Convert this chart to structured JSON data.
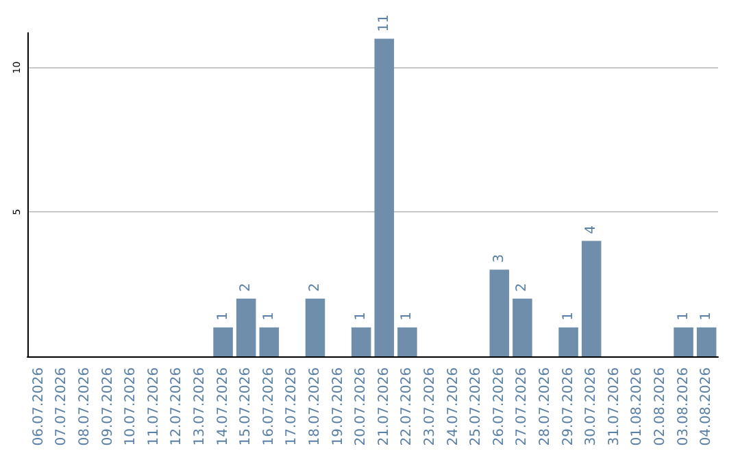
{
  "chart_data": {
    "type": "bar",
    "categories": [
      "06.07.2026",
      "07.07.2026",
      "08.07.2026",
      "09.07.2026",
      "10.07.2026",
      "11.07.2026",
      "12.07.2026",
      "13.07.2026",
      "14.07.2026",
      "15.07.2026",
      "16.07.2026",
      "17.07.2026",
      "18.07.2026",
      "19.07.2026",
      "20.07.2026",
      "21.07.2026",
      "22.07.2026",
      "23.07.2026",
      "24.07.2026",
      "25.07.2026",
      "26.07.2026",
      "27.07.2026",
      "28.07.2026",
      "29.07.2026",
      "30.07.2026",
      "31.07.2026",
      "01.08.2026",
      "02.08.2026",
      "03.08.2026",
      "04.08.2026"
    ],
    "values": [
      0,
      0,
      0,
      0,
      0,
      0,
      0,
      0,
      1,
      2,
      1,
      0,
      2,
      0,
      1,
      11,
      1,
      0,
      0,
      0,
      3,
      2,
      0,
      1,
      4,
      0,
      0,
      0,
      1,
      1
    ],
    "value_labels": [
      null,
      null,
      null,
      null,
      null,
      null,
      null,
      null,
      "1",
      "2",
      "1",
      null,
      "2",
      null,
      "1",
      "11",
      "1",
      null,
      null,
      null,
      "3",
      "2",
      null,
      "1",
      "4",
      null,
      null,
      null,
      "1",
      "1"
    ],
    "color": "#6f8eac",
    "ylim": [
      0,
      11.2
    ],
    "yticks": [
      5,
      10
    ],
    "grid": "y"
  }
}
